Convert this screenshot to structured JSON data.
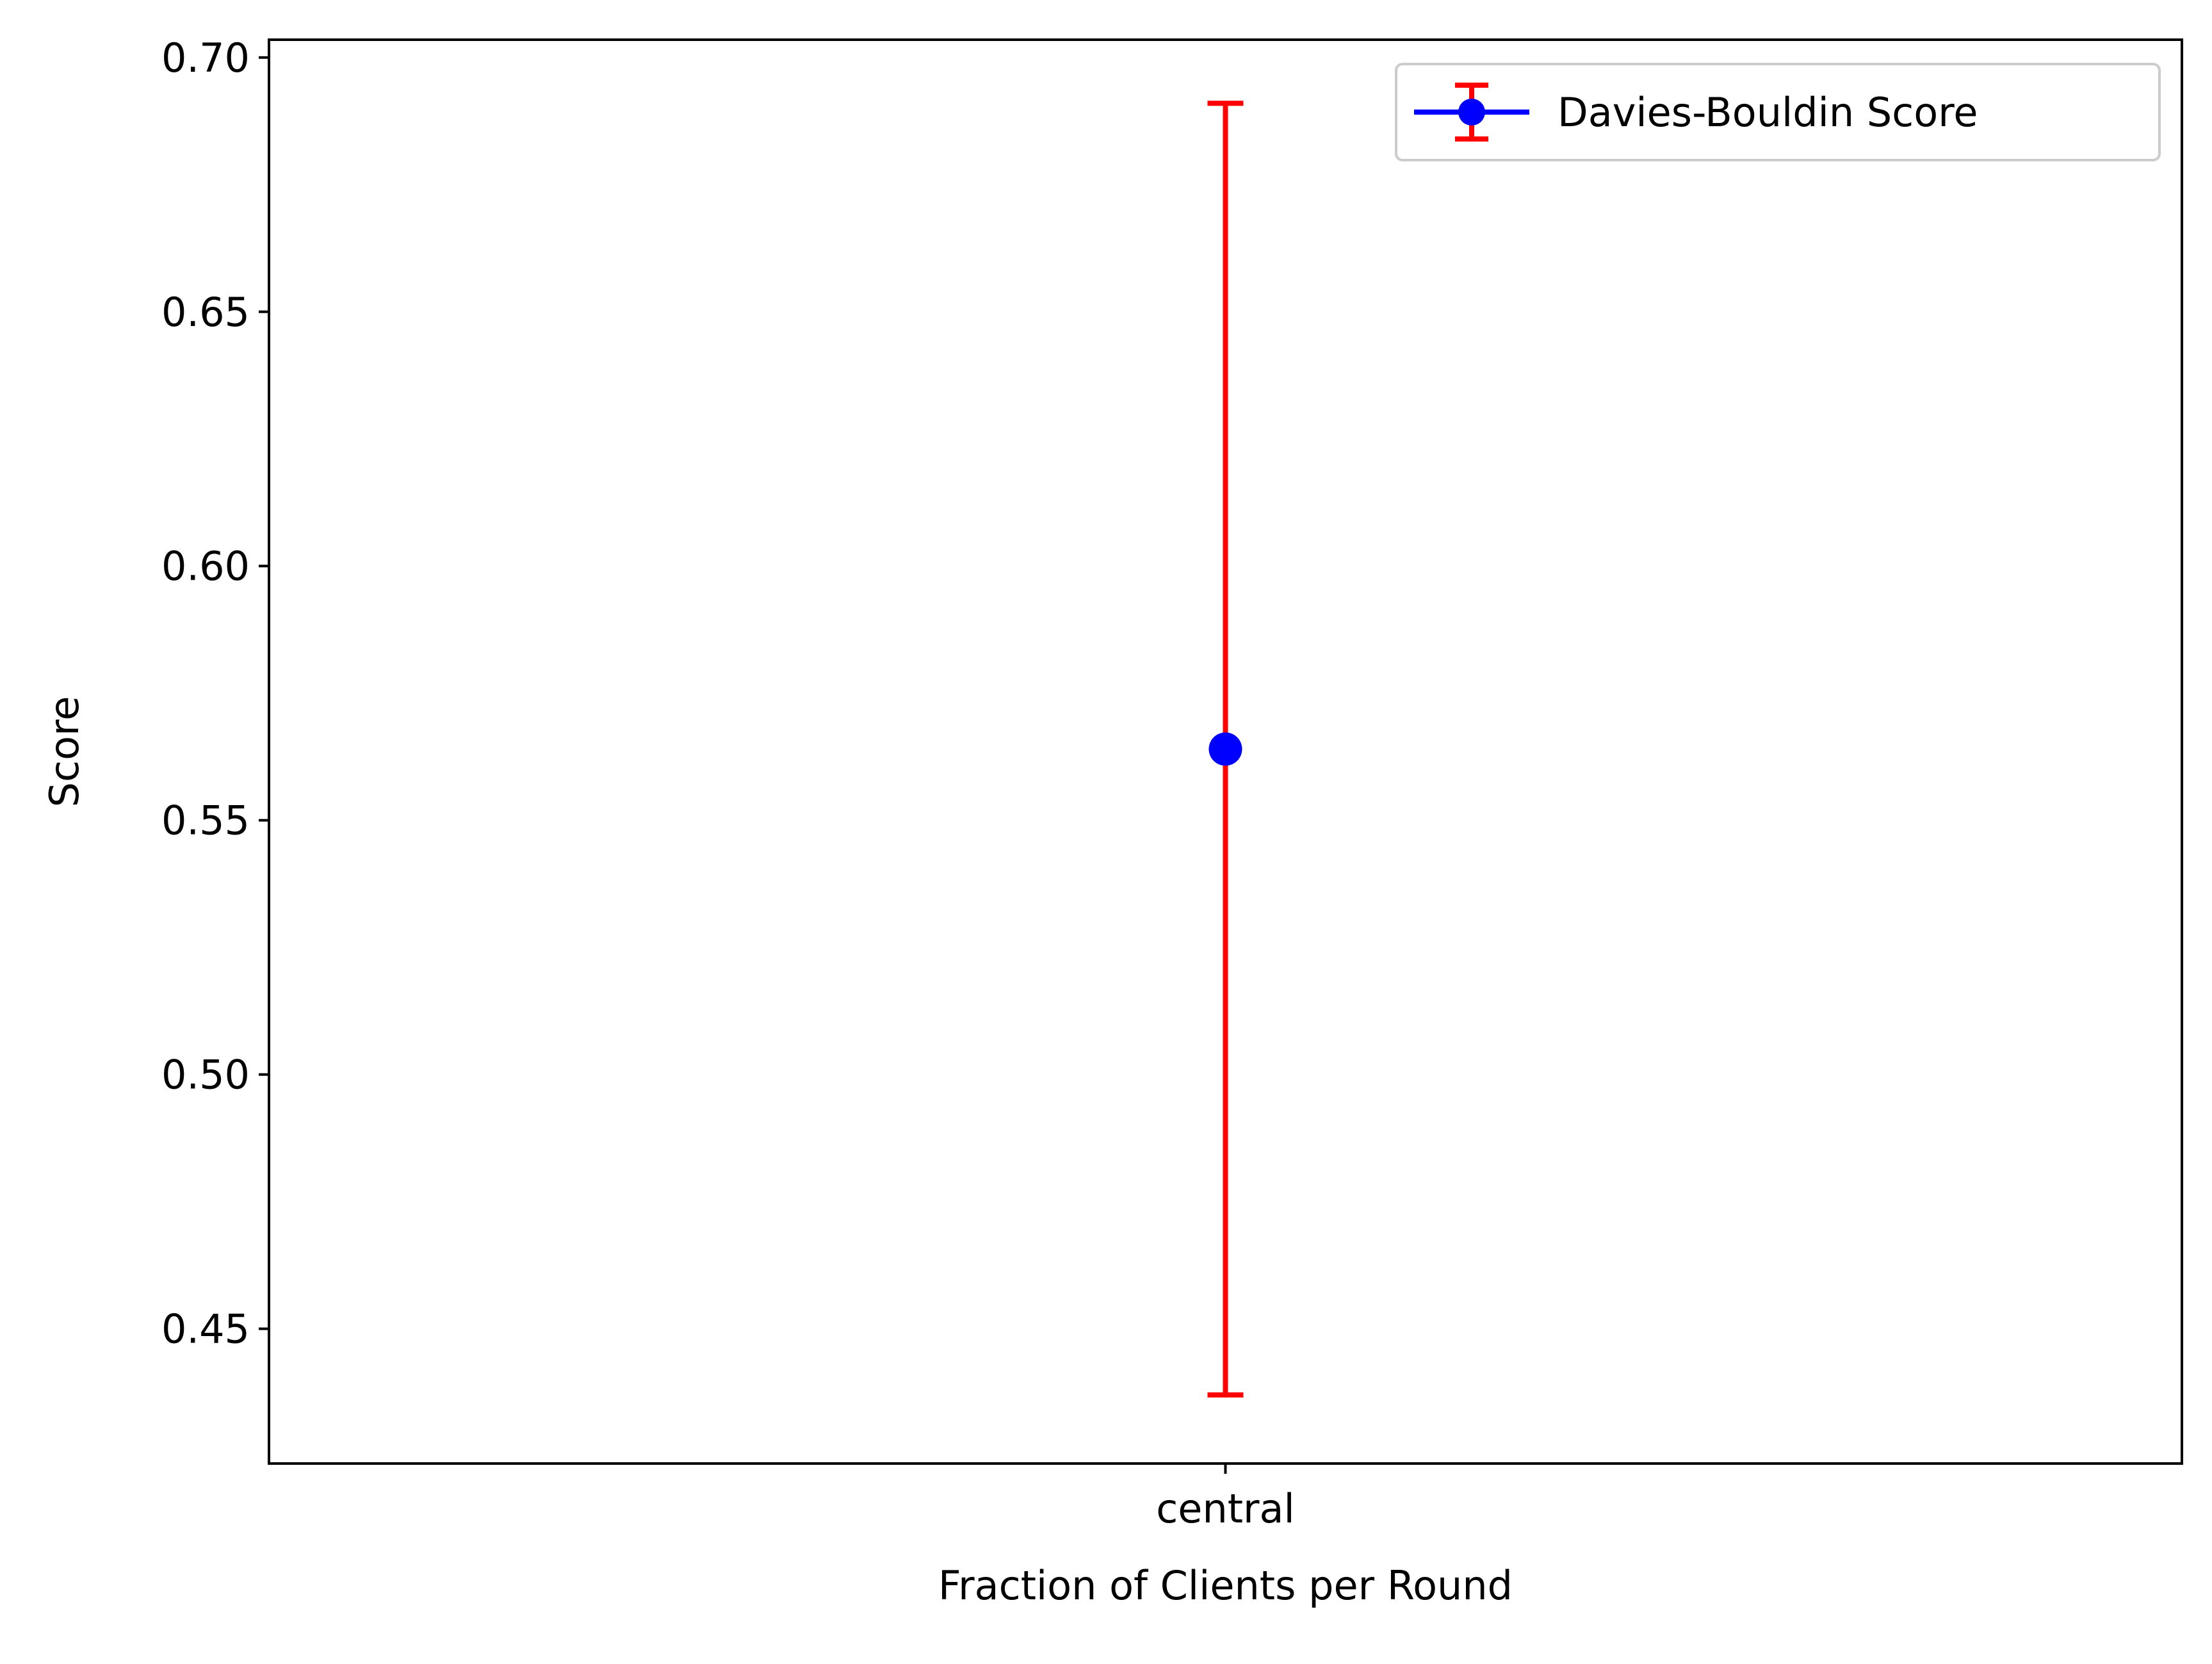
{
  "chart_data": {
    "type": "errorbar",
    "categories": [
      "central"
    ],
    "series": [
      {
        "name": "Davies-Bouldin Score",
        "values": [
          0.564
        ],
        "error_low": [
          0.437
        ],
        "error_high": [
          0.691
        ],
        "line_color": "#0000ff",
        "marker_color": "#0000ff",
        "error_color": "#ff0000"
      }
    ],
    "xlabel": "Fraction of Clients per Round",
    "ylabel": "Score",
    "ylim": [
      0.4235,
      0.7035
    ],
    "yticks": [
      0.45,
      0.5,
      0.55,
      0.6,
      0.65,
      0.7
    ],
    "ytick_labels": [
      "0.45",
      "0.50",
      "0.55",
      "0.60",
      "0.65",
      "0.70"
    ],
    "grid": false,
    "legend_position": "upper-right"
  }
}
